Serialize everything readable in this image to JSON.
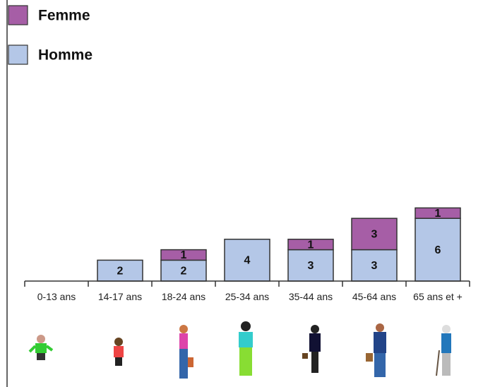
{
  "chart_data": {
    "type": "stacked-bar",
    "categories": [
      "0-13 ans",
      "14-17 ans",
      "18-24 ans",
      "25-34 ans",
      "35-44 ans",
      "45-64 ans",
      "65 ans et +"
    ],
    "series": [
      {
        "name": "Homme",
        "color": "#b4c7e7",
        "values": [
          0,
          2,
          2,
          4,
          3,
          3,
          6
        ]
      },
      {
        "name": "Femme",
        "color": "#a65ea6",
        "values": [
          0,
          0,
          1,
          0,
          1,
          3,
          1
        ]
      }
    ]
  }
}
